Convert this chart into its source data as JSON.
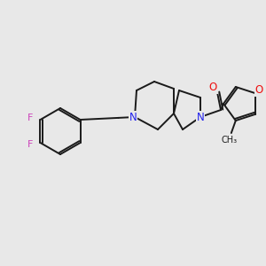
{
  "bg_color": "#e8e8e8",
  "bond_color": "#1a1a1a",
  "bond_width": 1.4,
  "N_color": "#2020ee",
  "O_color": "#ee1010",
  "F_color": "#cc44bb",
  "figsize": [
    3.0,
    3.0
  ],
  "dpi": 100,
  "xlim": [
    0,
    300
  ],
  "ylim": [
    0,
    300
  ]
}
